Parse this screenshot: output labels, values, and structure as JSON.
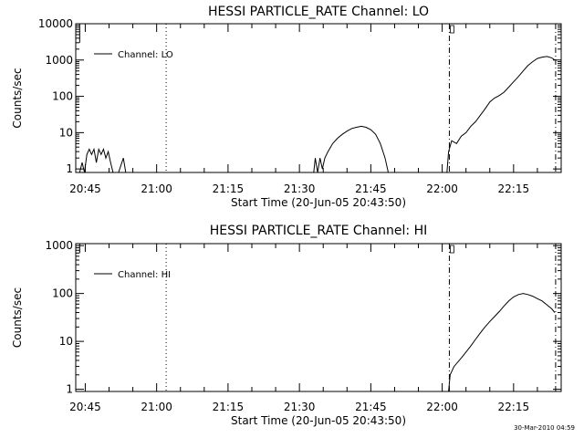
{
  "footer_timestamp": "30-Mar-2010 04:59",
  "chart_data": [
    {
      "type": "line",
      "title": "HESSI PARTICLE_RATE Channel: LO",
      "xlabel": "Start Time (20-Jun-05 20:43:50)",
      "ylabel": "Counts/sec",
      "yscale": "log",
      "ylim": [
        0.8,
        10000
      ],
      "xlim": [
        "20:43",
        "22:25"
      ],
      "xticks": [
        "20:45",
        "21:00",
        "21:15",
        "21:30",
        "21:45",
        "22:00",
        "22:15"
      ],
      "yticks": [
        "1",
        "10",
        "100",
        "1000",
        "10000"
      ],
      "legend": {
        "position": "top-left",
        "entries": [
          "Channel: LO"
        ]
      },
      "series": [
        {
          "name": "Channel: LO",
          "points": [
            [
              "20:43:50",
              0.5
            ],
            [
              "20:44:20",
              1.5
            ],
            [
              "20:44:50",
              0.5
            ],
            [
              "20:45:20",
              2.5
            ],
            [
              "20:45:50",
              3.5
            ],
            [
              "20:46:20",
              2.5
            ],
            [
              "20:46:50",
              3.5
            ],
            [
              "20:47:20",
              1.5
            ],
            [
              "20:47:50",
              3.5
            ],
            [
              "20:48:20",
              2.5
            ],
            [
              "20:48:50",
              3.5
            ],
            [
              "20:49:20",
              2.0
            ],
            [
              "20:49:50",
              3.0
            ],
            [
              "20:50:20",
              1.5
            ],
            [
              "20:50:50",
              0.5
            ],
            [
              "20:52:00",
              0.5
            ],
            [
              "20:53:00",
              2.0
            ],
            [
              "20:53:30",
              0.5
            ],
            [
              "21:33:00",
              0.5
            ],
            [
              "21:33:20",
              2.0
            ],
            [
              "21:33:50",
              0.5
            ],
            [
              "21:34:20",
              2.0
            ],
            [
              "21:34:50",
              1.0
            ],
            [
              "21:35:20",
              2.0
            ],
            [
              "21:36:00",
              3.0
            ],
            [
              "21:37:00",
              5.0
            ],
            [
              "21:38:00",
              7.0
            ],
            [
              "21:39:00",
              9.0
            ],
            [
              "21:40:00",
              11.0
            ],
            [
              "21:41:00",
              13.0
            ],
            [
              "21:42:00",
              14.0
            ],
            [
              "21:43:00",
              15.0
            ],
            [
              "21:44:00",
              14.0
            ],
            [
              "21:45:00",
              12.0
            ],
            [
              "21:46:00",
              9.0
            ],
            [
              "21:47:00",
              5.0
            ],
            [
              "21:48:00",
              2.0
            ],
            [
              "21:48:40",
              0.5
            ],
            [
              "22:01:00",
              0.5
            ],
            [
              "22:01:20",
              3.0
            ],
            [
              "22:02:00",
              6.0
            ],
            [
              "22:03:00",
              5.0
            ],
            [
              "22:04:00",
              8.0
            ],
            [
              "22:05:00",
              10.0
            ],
            [
              "22:06:00",
              15.0
            ],
            [
              "22:07:00",
              20.0
            ],
            [
              "22:08:00",
              30.0
            ],
            [
              "22:09:00",
              45.0
            ],
            [
              "22:10:00",
              70.0
            ],
            [
              "22:11:00",
              90.0
            ],
            [
              "22:12:00",
              105.0
            ],
            [
              "22:13:00",
              130.0
            ],
            [
              "22:14:00",
              180.0
            ],
            [
              "22:15:00",
              250.0
            ],
            [
              "22:16:00",
              350.0
            ],
            [
              "22:17:00",
              500.0
            ],
            [
              "22:18:00",
              700.0
            ],
            [
              "22:19:00",
              900.0
            ],
            [
              "22:20:00",
              1100.0
            ],
            [
              "22:21:00",
              1200.0
            ],
            [
              "22:22:00",
              1250.0
            ],
            [
              "22:23:00",
              1150.0
            ],
            [
              "22:23:40",
              1000.0
            ]
          ]
        }
      ],
      "annotations": [
        {
          "type": "vline",
          "style": "dotted",
          "x": "21:02"
        },
        {
          "type": "vline",
          "style": "dash-dot",
          "x": "22:01:30"
        },
        {
          "type": "vline",
          "style": "dash-dot",
          "x": "22:23:50"
        },
        {
          "type": "vline",
          "style": "solid",
          "x": "20:43:50",
          "ymin": 3000,
          "ymax": 15000
        }
      ]
    },
    {
      "type": "line",
      "title": "HESSI PARTICLE_RATE Channel: HI",
      "xlabel": "Start Time (20-Jun-05 20:43:50)",
      "ylabel": "Counts/sec",
      "yscale": "log",
      "ylim": [
        0.9,
        1100
      ],
      "xlim": [
        "20:43",
        "22:25"
      ],
      "xticks": [
        "20:45",
        "21:00",
        "21:15",
        "21:30",
        "21:45",
        "22:00",
        "22:15"
      ],
      "yticks": [
        "1",
        "10",
        "100",
        "1000"
      ],
      "legend": {
        "position": "top-left",
        "entries": [
          "Channel: HI"
        ]
      },
      "series": [
        {
          "name": "Channel: HI",
          "points": [
            [
              "22:01:20",
              0.5
            ],
            [
              "22:01:40",
              2.0
            ],
            [
              "22:02:30",
              3.0
            ],
            [
              "22:04:00",
              4.5
            ],
            [
              "22:05:00",
              6.0
            ],
            [
              "22:06:00",
              8.0
            ],
            [
              "22:07:00",
              11.0
            ],
            [
              "22:08:00",
              15.0
            ],
            [
              "22:09:00",
              20.0
            ],
            [
              "22:10:00",
              26.0
            ],
            [
              "22:11:00",
              33.0
            ],
            [
              "22:12:00",
              42.0
            ],
            [
              "22:13:00",
              55.0
            ],
            [
              "22:14:00",
              70.0
            ],
            [
              "22:15:00",
              85.0
            ],
            [
              "22:16:00",
              95.0
            ],
            [
              "22:17:00",
              100.0
            ],
            [
              "22:18:00",
              95.0
            ],
            [
              "22:19:00",
              88.0
            ],
            [
              "22:20:00",
              78.0
            ],
            [
              "22:21:00",
              70.0
            ],
            [
              "22:22:00",
              58.0
            ],
            [
              "22:23:00",
              48.0
            ],
            [
              "22:23:40",
              40.0
            ]
          ]
        }
      ],
      "annotations": [
        {
          "type": "vline",
          "style": "dotted",
          "x": "21:02"
        },
        {
          "type": "vline",
          "style": "dash-dot",
          "x": "22:01:30"
        },
        {
          "type": "vline",
          "style": "dash-dot",
          "x": "22:23:50"
        },
        {
          "type": "vline",
          "style": "solid",
          "x": "20:43:50",
          "ymin": 700,
          "ymax": 1100
        }
      ]
    }
  ]
}
